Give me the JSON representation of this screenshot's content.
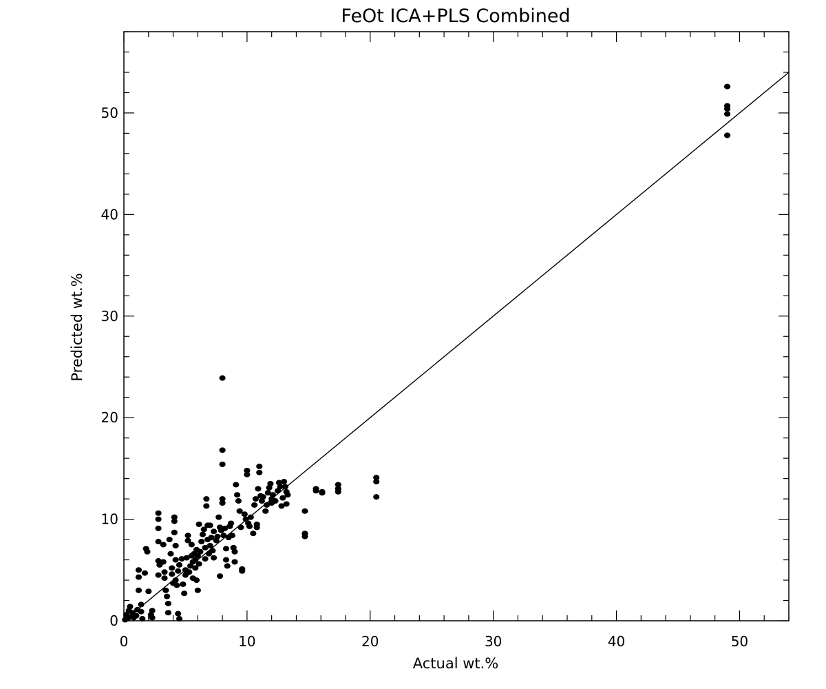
{
  "chart_data": {
    "type": "scatter",
    "title": "FeOt ICA+PLS Combined",
    "xlabel": "Actual wt.%",
    "ylabel": "Predicted wt.%",
    "xlim": [
      0,
      54
    ],
    "ylim": [
      0,
      58
    ],
    "xticks": [
      0,
      10,
      20,
      30,
      40,
      50
    ],
    "yticks": [
      0,
      10,
      20,
      30,
      40,
      50
    ],
    "x_minor_step": 2,
    "y_minor_step": 2,
    "fit_line": {
      "slope": 1.0,
      "intercept": 0.0
    },
    "grid": false,
    "legend": "none",
    "points": [
      [
        0.1,
        0.1
      ],
      [
        0.2,
        0.6
      ],
      [
        0.3,
        0.2
      ],
      [
        0.4,
        1.0
      ],
      [
        0.5,
        1.4
      ],
      [
        0.6,
        0.4
      ],
      [
        0.7,
        0.8
      ],
      [
        0.8,
        0.3
      ],
      [
        1.0,
        0.5
      ],
      [
        1.1,
        1.1
      ],
      [
        1.2,
        3.0
      ],
      [
        1.2,
        4.3
      ],
      [
        1.2,
        5.0
      ],
      [
        1.4,
        1.6
      ],
      [
        1.4,
        0.9
      ],
      [
        1.5,
        0.2
      ],
      [
        1.7,
        4.7
      ],
      [
        1.8,
        7.1
      ],
      [
        1.9,
        6.8
      ],
      [
        2.0,
        2.9
      ],
      [
        2.2,
        0.6
      ],
      [
        2.3,
        1.0
      ],
      [
        2.3,
        0.3
      ],
      [
        2.8,
        10.6
      ],
      [
        2.8,
        10.0
      ],
      [
        2.8,
        9.1
      ],
      [
        2.8,
        7.8
      ],
      [
        2.8,
        5.9
      ],
      [
        2.8,
        4.5
      ],
      [
        2.9,
        5.5
      ],
      [
        3.2,
        7.5
      ],
      [
        3.2,
        5.8
      ],
      [
        3.3,
        4.8
      ],
      [
        3.3,
        4.2
      ],
      [
        3.4,
        3.0
      ],
      [
        3.5,
        2.4
      ],
      [
        3.6,
        1.7
      ],
      [
        3.6,
        0.8
      ],
      [
        3.7,
        8.0
      ],
      [
        3.8,
        6.6
      ],
      [
        3.9,
        5.2
      ],
      [
        3.9,
        4.6
      ],
      [
        4.0,
        3.7
      ],
      [
        4.1,
        10.2
      ],
      [
        4.1,
        9.8
      ],
      [
        4.1,
        8.7
      ],
      [
        4.2,
        6.0
      ],
      [
        4.2,
        7.4
      ],
      [
        4.2,
        4.0
      ],
      [
        4.3,
        3.5
      ],
      [
        4.4,
        4.9
      ],
      [
        4.4,
        0.7
      ],
      [
        4.5,
        0.2
      ],
      [
        4.5,
        5.5
      ],
      [
        4.7,
        6.1
      ],
      [
        4.8,
        3.6
      ],
      [
        4.9,
        2.7
      ],
      [
        5.0,
        4.5
      ],
      [
        5.0,
        5.0
      ],
      [
        5.1,
        6.2
      ],
      [
        5.2,
        8.4
      ],
      [
        5.2,
        7.9
      ],
      [
        5.3,
        4.8
      ],
      [
        5.4,
        5.4
      ],
      [
        5.5,
        6.4
      ],
      [
        5.5,
        7.5
      ],
      [
        5.6,
        4.2
      ],
      [
        5.6,
        5.8
      ],
      [
        5.7,
        6.6
      ],
      [
        5.8,
        5.2
      ],
      [
        5.8,
        6.0
      ],
      [
        5.9,
        7.0
      ],
      [
        5.9,
        4.0
      ],
      [
        6.0,
        3.0
      ],
      [
        6.0,
        6.4
      ],
      [
        6.1,
        9.5
      ],
      [
        6.1,
        5.6
      ],
      [
        6.2,
        6.8
      ],
      [
        6.3,
        7.8
      ],
      [
        6.4,
        8.5
      ],
      [
        6.5,
        9.0
      ],
      [
        6.6,
        7.2
      ],
      [
        6.6,
        6.1
      ],
      [
        6.7,
        12.0
      ],
      [
        6.7,
        11.3
      ],
      [
        6.8,
        9.4
      ],
      [
        6.8,
        8.0
      ],
      [
        6.9,
        6.6
      ],
      [
        7.0,
        7.4
      ],
      [
        7.0,
        9.4
      ],
      [
        7.1,
        8.2
      ],
      [
        7.2,
        6.9
      ],
      [
        7.3,
        8.8
      ],
      [
        7.3,
        6.2
      ],
      [
        7.5,
        7.9
      ],
      [
        7.6,
        8.3
      ],
      [
        7.7,
        10.2
      ],
      [
        7.8,
        9.2
      ],
      [
        7.8,
        4.4
      ],
      [
        7.9,
        8.9
      ],
      [
        8.0,
        23.9
      ],
      [
        8.0,
        16.8
      ],
      [
        8.0,
        15.4
      ],
      [
        8.0,
        12.0
      ],
      [
        8.0,
        11.6
      ],
      [
        8.1,
        8.4
      ],
      [
        8.2,
        9.1
      ],
      [
        8.3,
        7.1
      ],
      [
        8.3,
        6.0
      ],
      [
        8.4,
        5.4
      ],
      [
        8.5,
        8.2
      ],
      [
        8.6,
        9.3
      ],
      [
        8.7,
        9.6
      ],
      [
        8.8,
        8.4
      ],
      [
        8.9,
        7.2
      ],
      [
        9.0,
        6.8
      ],
      [
        9.0,
        5.8
      ],
      [
        9.1,
        13.4
      ],
      [
        9.2,
        12.4
      ],
      [
        9.3,
        11.8
      ],
      [
        9.4,
        10.8
      ],
      [
        9.5,
        9.2
      ],
      [
        9.6,
        5.1
      ],
      [
        9.6,
        4.9
      ],
      [
        9.8,
        10.5
      ],
      [
        9.9,
        10.0
      ],
      [
        10.0,
        14.8
      ],
      [
        10.0,
        14.4
      ],
      [
        10.1,
        9.6
      ],
      [
        10.2,
        9.3
      ],
      [
        10.3,
        10.2
      ],
      [
        10.5,
        8.6
      ],
      [
        10.6,
        11.4
      ],
      [
        10.7,
        12.0
      ],
      [
        10.8,
        9.2
      ],
      [
        10.8,
        9.5
      ],
      [
        10.9,
        13.0
      ],
      [
        11.0,
        14.6
      ],
      [
        11.0,
        15.2
      ],
      [
        11.1,
        12.3
      ],
      [
        11.2,
        11.8
      ],
      [
        11.3,
        12.2
      ],
      [
        11.5,
        10.8
      ],
      [
        11.6,
        11.4
      ],
      [
        11.7,
        12.6
      ],
      [
        11.8,
        13.1
      ],
      [
        11.9,
        13.5
      ],
      [
        12.0,
        12.0
      ],
      [
        12.0,
        11.6
      ],
      [
        12.1,
        12.4
      ],
      [
        12.3,
        11.8
      ],
      [
        12.5,
        12.8
      ],
      [
        12.6,
        13.6
      ],
      [
        12.7,
        13.2
      ],
      [
        12.8,
        11.3
      ],
      [
        12.9,
        12.1
      ],
      [
        13.0,
        13.7
      ],
      [
        13.1,
        13.2
      ],
      [
        13.2,
        12.7
      ],
      [
        13.2,
        11.5
      ],
      [
        13.3,
        12.4
      ],
      [
        14.7,
        10.8
      ],
      [
        14.7,
        8.6
      ],
      [
        14.7,
        8.3
      ],
      [
        15.6,
        13.0
      ],
      [
        15.6,
        12.8
      ],
      [
        16.1,
        12.7
      ],
      [
        16.1,
        12.6
      ],
      [
        17.4,
        13.4
      ],
      [
        17.4,
        13.0
      ],
      [
        17.4,
        12.7
      ],
      [
        20.5,
        14.1
      ],
      [
        20.5,
        13.7
      ],
      [
        20.5,
        12.2
      ],
      [
        49.0,
        52.6
      ],
      [
        49.0,
        50.7
      ],
      [
        49.0,
        50.4
      ],
      [
        49.0,
        49.9
      ],
      [
        49.0,
        47.8
      ]
    ]
  }
}
